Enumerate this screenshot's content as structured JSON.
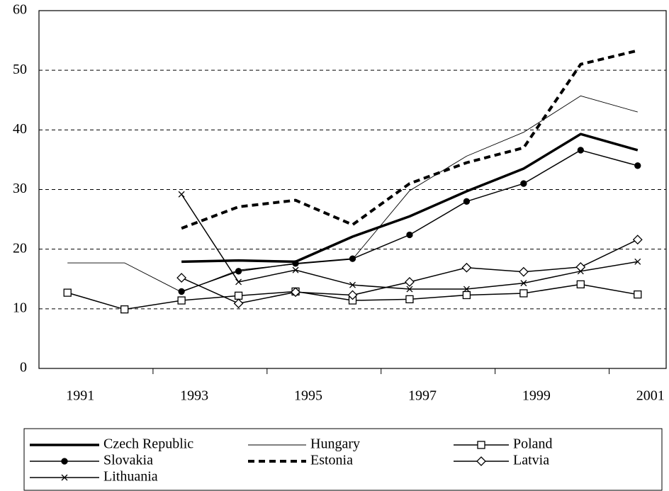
{
  "chart_data": {
    "type": "line",
    "categories": [
      "1991",
      null,
      "1993",
      null,
      "1995",
      null,
      "1997",
      null,
      "1999",
      null,
      "2001"
    ],
    "ylim": [
      0,
      60
    ],
    "yticks": [
      0,
      10,
      20,
      30,
      40,
      50,
      60
    ],
    "grid": "dashed",
    "legend": "bottom",
    "series": [
      {
        "name": "Czech Republic",
        "color": "#000000",
        "line": "thick",
        "marker": "none",
        "values": [
          null,
          null,
          17.9,
          18.1,
          17.9,
          22.1,
          25.5,
          29.7,
          33.5,
          39.3,
          36.6
        ]
      },
      {
        "name": "Hungary",
        "color": "#000000",
        "line": "thin",
        "marker": "none",
        "values": [
          17.7,
          17.7,
          12.8,
          16.5,
          17.5,
          18.3,
          29.8,
          35.6,
          39.6,
          45.7,
          43.0
        ]
      },
      {
        "name": "Poland",
        "color": "#000000",
        "line": "normal",
        "marker": "square",
        "values": [
          12.7,
          9.9,
          11.4,
          12.2,
          12.9,
          11.4,
          11.6,
          12.3,
          12.6,
          14.1,
          12.4
        ]
      },
      {
        "name": "Slovakia",
        "color": "#000000",
        "line": "normal",
        "marker": "circle",
        "values": [
          null,
          null,
          12.9,
          16.3,
          17.6,
          18.4,
          22.4,
          28.0,
          31.0,
          36.6,
          34.0
        ]
      },
      {
        "name": "Estonia",
        "color": "#000000",
        "line": "dashed",
        "marker": "none",
        "values": [
          null,
          null,
          23.5,
          27.1,
          28.2,
          24.1,
          31.0,
          34.5,
          37.0,
          51.0,
          53.3
        ]
      },
      {
        "name": "Latvia",
        "color": "#000000",
        "line": "normal",
        "marker": "diamond",
        "values": [
          null,
          null,
          15.2,
          10.9,
          12.8,
          12.3,
          14.5,
          16.9,
          16.2,
          17.0,
          21.6
        ]
      },
      {
        "name": "Lithuania",
        "color": "#000000",
        "line": "normal",
        "marker": "x",
        "values": [
          null,
          null,
          29.2,
          14.5,
          16.5,
          14.0,
          13.3,
          13.3,
          14.3,
          16.3,
          17.9
        ]
      }
    ]
  }
}
